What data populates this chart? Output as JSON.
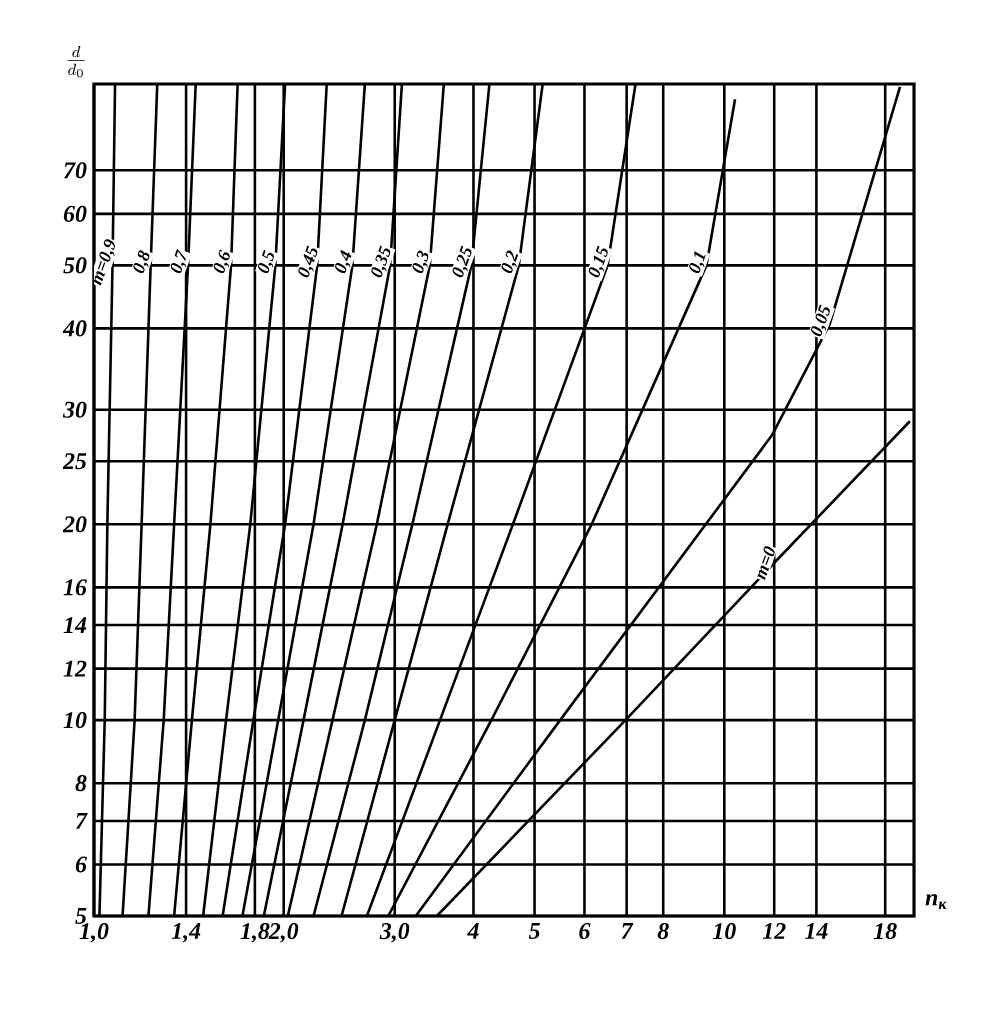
{
  "chart_data": {
    "type": "line",
    "xlabel": "n$_{к}$",
    "ylabel": "\\frac{d}{d_0}",
    "log": "xy",
    "grid": true,
    "marker": "none",
    "line_style": "solid",
    "xlim": [
      1,
      20
    ],
    "ylim": [
      5,
      95
    ],
    "xticks": [
      {
        "value": 1,
        "label": "1,0"
      },
      {
        "value": 1.4,
        "label": "1,4"
      },
      {
        "value": 1.8,
        "label": "1,8"
      },
      {
        "value": 2,
        "label": "2,0"
      },
      {
        "value": 3,
        "label": "3,0"
      },
      4,
      5,
      6,
      7,
      8,
      10,
      12,
      14,
      18
    ],
    "yticks": [
      5,
      6,
      7,
      8,
      10,
      12,
      14,
      16,
      20,
      25,
      30,
      40,
      50,
      60,
      70
    ],
    "series": [
      {
        "name": "m=0,9",
        "color": "#000000",
        "x": [
          1.02,
          1.04,
          1.05,
          1.07,
          1.08
        ],
        "values": [
          5,
          10,
          20,
          50,
          95
        ]
      },
      {
        "name": "0,8",
        "color": "#000000",
        "x": [
          1.11,
          1.16,
          1.19,
          1.23,
          1.26
        ],
        "values": [
          5,
          10,
          20,
          50,
          95
        ]
      },
      {
        "name": "0,7",
        "color": "#000000",
        "x": [
          1.22,
          1.29,
          1.34,
          1.41,
          1.45
        ],
        "values": [
          5,
          10,
          20,
          50,
          95
        ]
      },
      {
        "name": "0,6",
        "color": "#000000",
        "x": [
          1.34,
          1.43,
          1.53,
          1.65,
          1.69
        ],
        "values": [
          5,
          10,
          20,
          50,
          95
        ]
      },
      {
        "name": "0,5",
        "color": "#000000",
        "x": [
          1.49,
          1.62,
          1.77,
          1.94,
          2.01
        ],
        "values": [
          5,
          10,
          20,
          50,
          95
        ]
      },
      {
        "name": "0,45",
        "color": "#000000",
        "x": [
          1.6,
          1.79,
          2.01,
          2.26,
          2.34
        ],
        "values": [
          5,
          10,
          20,
          50,
          95
        ]
      },
      {
        "name": "0,4",
        "color": "#000000",
        "x": [
          1.72,
          1.96,
          2.23,
          2.57,
          2.69
        ],
        "values": [
          5,
          10,
          20,
          50,
          95
        ]
      },
      {
        "name": "0,35",
        "color": "#000000",
        "x": [
          1.86,
          2.15,
          2.48,
          2.95,
          3.08
        ],
        "values": [
          5,
          10,
          20,
          50,
          95
        ]
      },
      {
        "name": "0,3",
        "color": "#000000",
        "x": [
          2.03,
          2.39,
          2.81,
          3.41,
          3.59
        ],
        "values": [
          5,
          10,
          20,
          50,
          95
        ]
      },
      {
        "name": "0,25",
        "color": "#000000",
        "x": [
          2.23,
          2.69,
          3.2,
          3.97,
          4.24
        ],
        "values": [
          5,
          10,
          20,
          50,
          95
        ]
      },
      {
        "name": "0,2",
        "color": "#000000",
        "x": [
          2.47,
          3.0,
          3.64,
          4.72,
          5.15
        ],
        "values": [
          5,
          10,
          20,
          50,
          95
        ]
      },
      {
        "name": "0,15",
        "color": "#000000",
        "x": [
          2.71,
          3.54,
          4.62,
          6.53,
          7.23
        ],
        "values": [
          5,
          10,
          20,
          50,
          95
        ]
      },
      {
        "name": "0,1",
        "color": "#000000",
        "x": [
          2.93,
          4.27,
          6.16,
          9.37,
          10.4
        ],
        "values": [
          5,
          10,
          20,
          50,
          90
        ]
      },
      {
        "name": "0,05",
        "color": "#000000",
        "x": [
          3.24,
          5.49,
          11.9,
          14.7,
          19.0
        ],
        "values": [
          5,
          10,
          27.4,
          40.6,
          94
        ]
      },
      {
        "name": "m=0",
        "color": "#000000",
        "x": [
          3.5,
          6.97,
          11.9,
          19.7
        ],
        "values": [
          5,
          10,
          17.3,
          28.8
        ]
      }
    ]
  }
}
